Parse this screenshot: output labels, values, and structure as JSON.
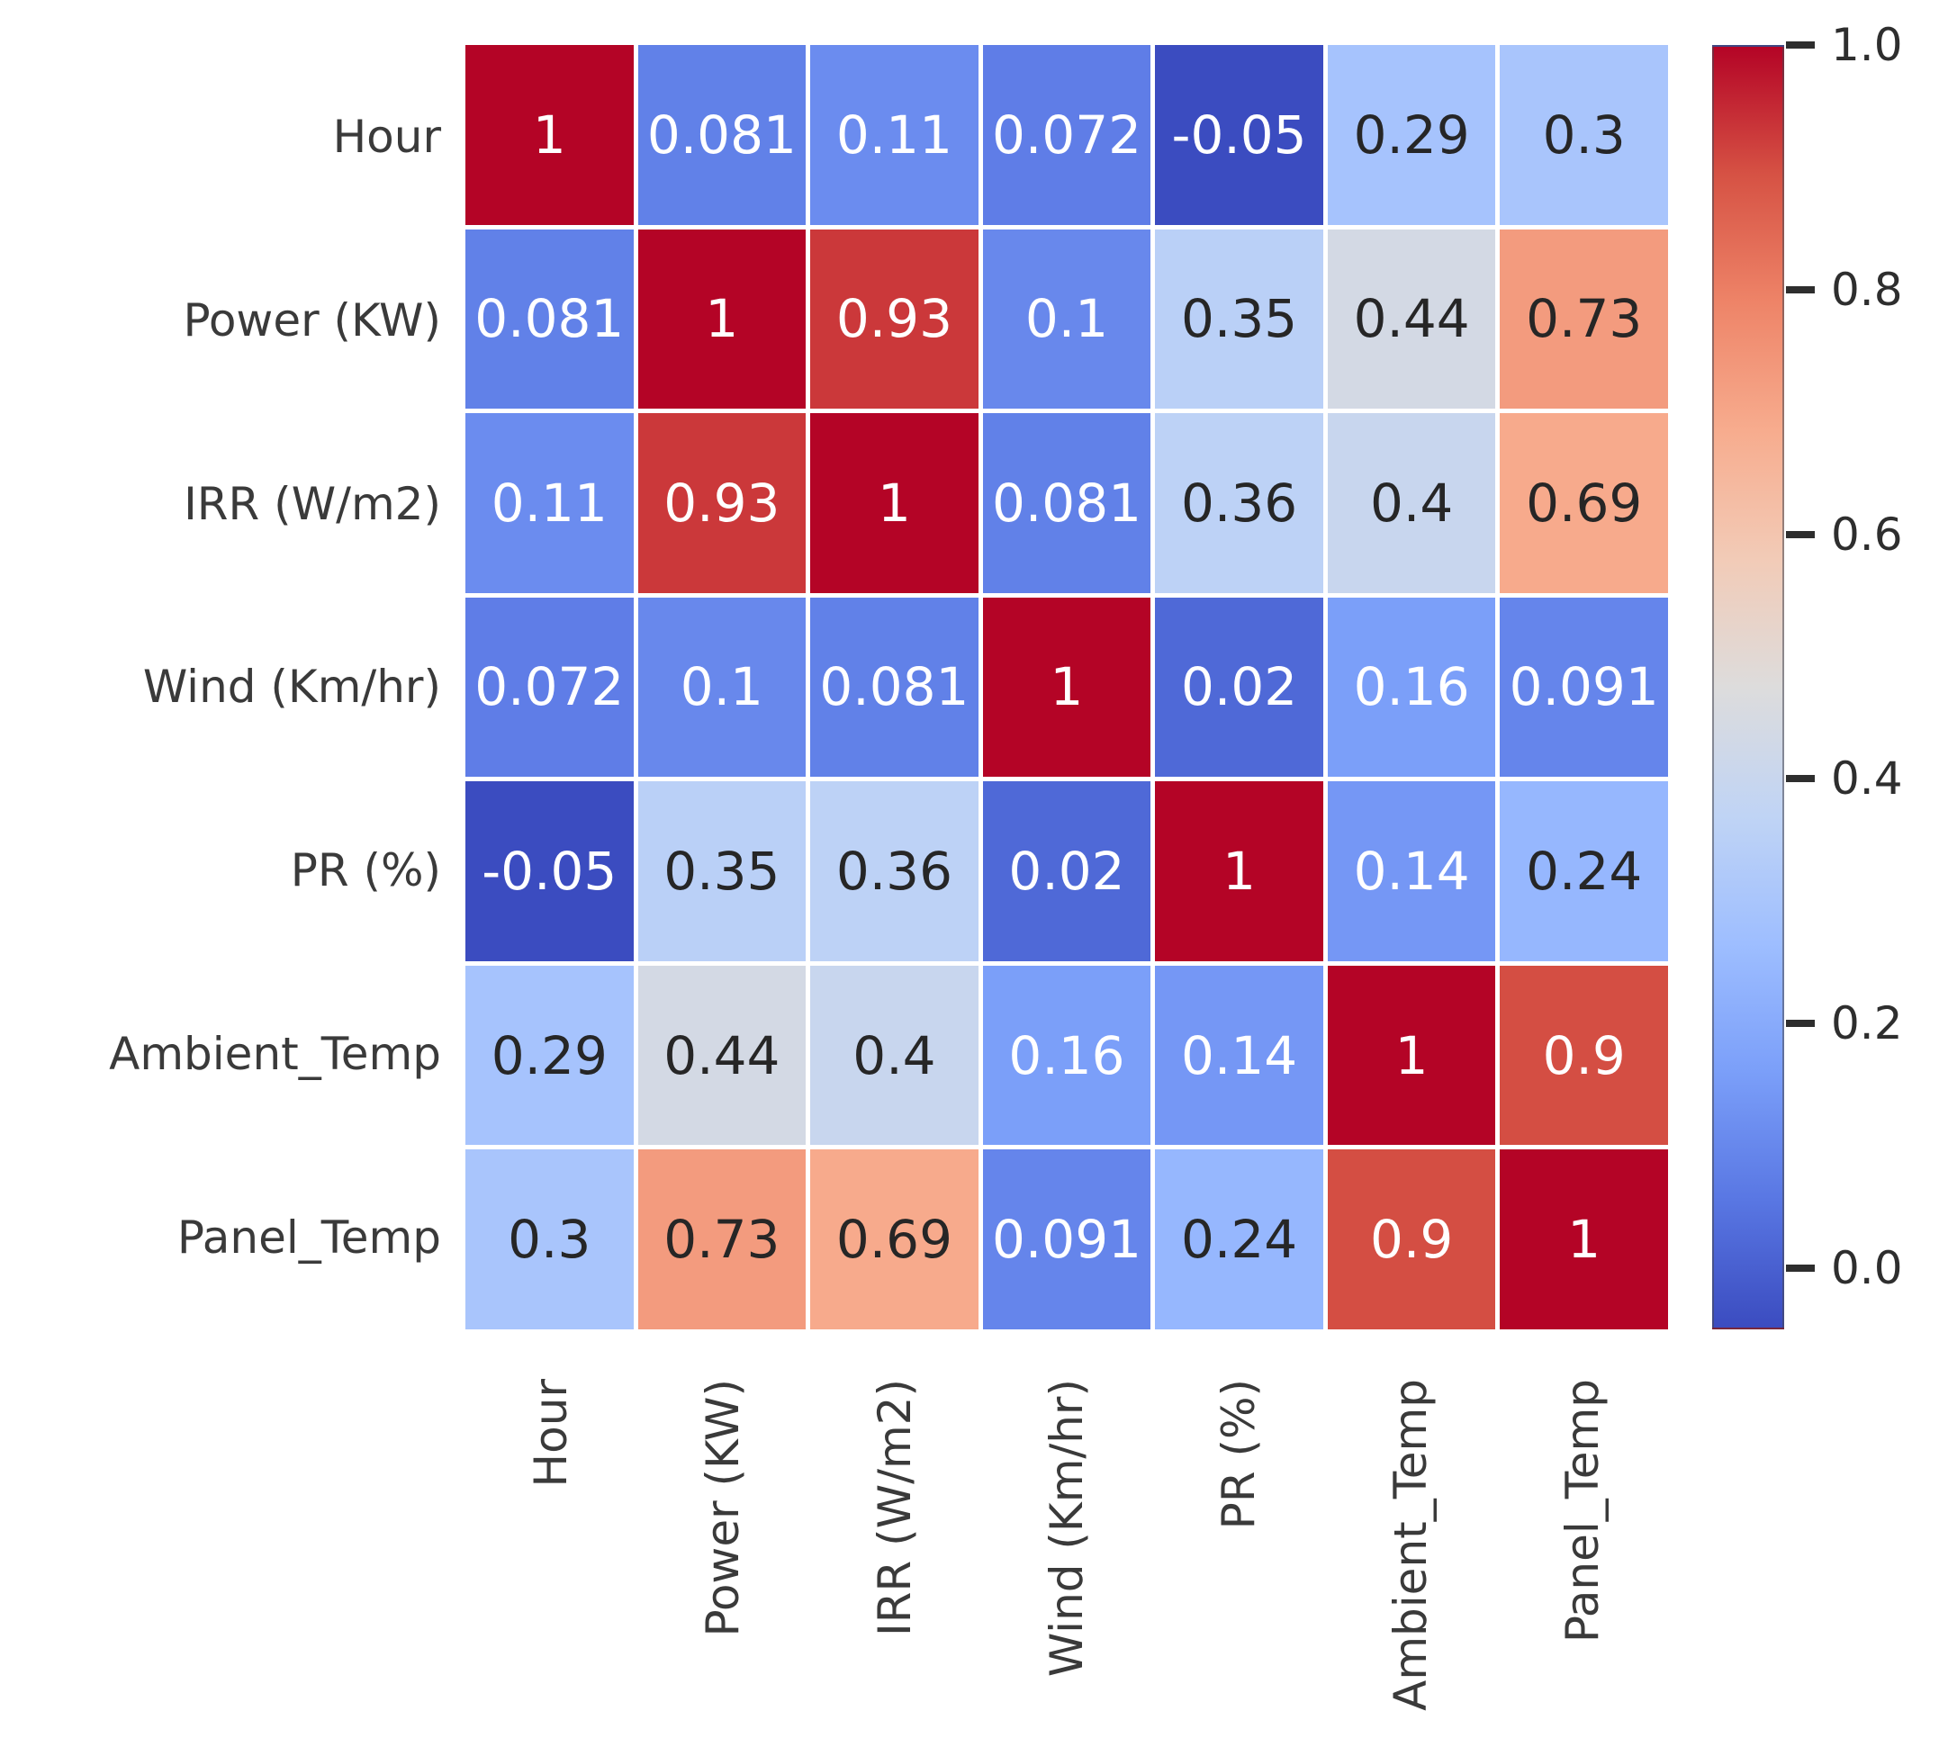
{
  "chart_data": {
    "type": "heatmap",
    "title": "",
    "xlabel": "",
    "ylabel": "",
    "categories": [
      "Hour",
      "Power (KW)",
      "IRR (W/m2)",
      "Wind (Km/hr)",
      "PR (%)",
      "Ambient_Temp",
      "Panel_Temp"
    ],
    "matrix": [
      [
        1,
        0.081,
        0.11,
        0.072,
        -0.05,
        0.29,
        0.3
      ],
      [
        0.081,
        1,
        0.93,
        0.1,
        0.35,
        0.44,
        0.73
      ],
      [
        0.11,
        0.93,
        1,
        0.081,
        0.36,
        0.4,
        0.69
      ],
      [
        0.072,
        0.1,
        0.081,
        1,
        0.02,
        0.16,
        0.091
      ],
      [
        -0.05,
        0.35,
        0.36,
        0.02,
        1,
        0.14,
        0.24
      ],
      [
        0.29,
        0.44,
        0.4,
        0.16,
        0.14,
        1,
        0.9
      ],
      [
        0.3,
        0.73,
        0.69,
        0.091,
        0.24,
        0.9,
        1
      ]
    ],
    "colormap": "coolwarm",
    "vmin": -0.05,
    "vmax": 1.0,
    "grid": false,
    "legend_position": "right-colorbar",
    "colorbar_ticks": [
      {
        "label": "1.0",
        "value": 1.0
      },
      {
        "label": "0.8",
        "value": 0.8
      },
      {
        "label": "0.6",
        "value": 0.6
      },
      {
        "label": "0.4",
        "value": 0.4
      },
      {
        "label": "0.2",
        "value": 0.2
      },
      {
        "label": "0.0",
        "value": 0.0
      }
    ]
  },
  "colors": {
    "max_color": "#b40426",
    "mid_color": "#dddcdc",
    "min_color": "#3b4cc0",
    "annotation_light": "#ffffff",
    "annotation_dark": "#262626",
    "axis_label_color": "#3a3a3a",
    "tick_color": "#2e2e2e",
    "cell_gap_color": "#ffffff",
    "background": "#ffffff"
  }
}
